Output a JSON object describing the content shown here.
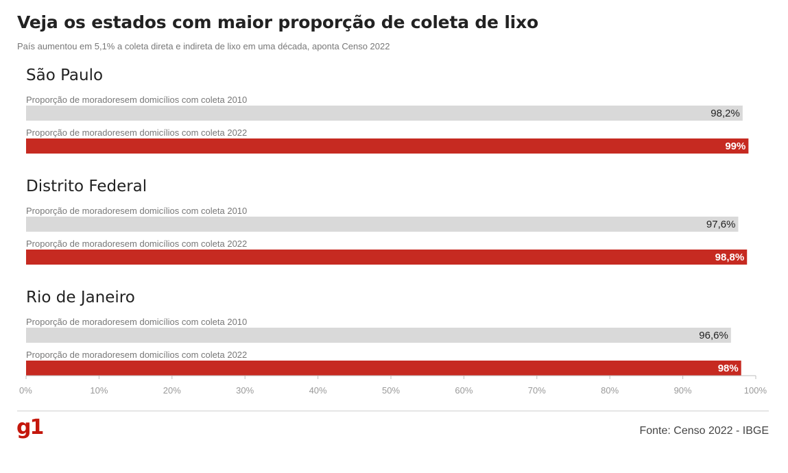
{
  "header": {
    "title": "Veja os estados com maior proporção de coleta de lixo",
    "subtitle": "País aumentou em 5,1% a coleta direta e indireta de lixo em uma década, aponta Censo 2022"
  },
  "footer": {
    "logo": "g1",
    "source": "Fonte: Censo 2022 - IBGE"
  },
  "colors": {
    "bar_2010": "#d9d9d9",
    "bar_2022": "#c62a21",
    "label_2010": "#222222",
    "label_2022": "#ffffff",
    "brand": "#c4170c"
  },
  "chart_data": {
    "type": "bar",
    "orientation": "horizontal",
    "xlim": [
      0,
      100
    ],
    "ticks": [
      "0%",
      "10%",
      "20%",
      "30%",
      "40%",
      "50%",
      "60%",
      "70%",
      "80%",
      "90%",
      "100%"
    ],
    "series_labels": [
      "Proporção de moradoresem domicílios com coleta 2010",
      "Proporção de moradoresem domicílios com coleta 2022"
    ],
    "groups": [
      {
        "name": "São Paulo",
        "bars": [
          {
            "label": "Proporção de moradoresem domicílios com coleta 2010",
            "value": 98.2,
            "display": "98,2%"
          },
          {
            "label": "Proporção de moradoresem domicílios com coleta 2022",
            "value": 99,
            "display": "99%"
          }
        ]
      },
      {
        "name": "Distrito Federal",
        "bars": [
          {
            "label": "Proporção de moradoresem domicílios com coleta 2010",
            "value": 97.6,
            "display": "97,6%"
          },
          {
            "label": "Proporção de moradoresem domicílios com coleta 2022",
            "value": 98.8,
            "display": "98,8%"
          }
        ]
      },
      {
        "name": "Rio de Janeiro",
        "bars": [
          {
            "label": "Proporção de moradoresem domicílios com coleta 2010",
            "value": 96.6,
            "display": "96,6%"
          },
          {
            "label": "Proporção de moradoresem domicílios com coleta 2022",
            "value": 98,
            "display": "98%"
          }
        ]
      }
    ]
  }
}
